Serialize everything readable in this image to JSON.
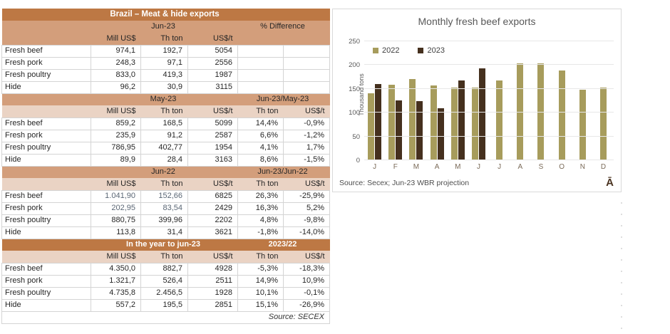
{
  "colors": {
    "header_dark": "#bd7844",
    "header_tan": "#d39e7b",
    "header_light": "#ead3c4",
    "bar_2022": "#a79c5c",
    "bar_2023": "#45301e"
  },
  "table": {
    "title": "Brazil – Meat & hide exports",
    "source": "Source: SECEX",
    "sections": [
      {
        "variant": "first",
        "period": "Jun-23",
        "diff_label": "% Difference",
        "col_headers": [
          "Mill US$",
          "Th ton",
          "US$/t",
          "",
          ""
        ],
        "rows": [
          {
            "label": "Fresh beef",
            "values": [
              "974,1",
              "192,7",
              "5054",
              "",
              ""
            ]
          },
          {
            "label": "Fresh pork",
            "values": [
              "248,3",
              "97,1",
              "2556",
              "",
              ""
            ]
          },
          {
            "label": "Fresh poultry",
            "values": [
              "833,0",
              "419,3",
              "1987",
              "",
              ""
            ]
          },
          {
            "label": "Hide",
            "values": [
              "96,2",
              "30,9",
              "3115",
              "",
              ""
            ]
          }
        ]
      },
      {
        "variant": "mid",
        "period": "May-23",
        "diff_label": "Jun-23/May-23",
        "col_headers": [
          "Mill US$",
          "Th ton",
          "US$/t",
          "Th ton",
          "US$/t"
        ],
        "rows": [
          {
            "label": "Fresh beef",
            "values": [
              "859,2",
              "168,5",
              "5099",
              "14,4%",
              "-0,9%"
            ]
          },
          {
            "label": "Fresh pork",
            "values": [
              "235,9",
              "91,2",
              "2587",
              "6,6%",
              "-1,2%"
            ]
          },
          {
            "label": "Fresh poultry",
            "values": [
              "786,95",
              "402,77",
              "1954",
              "4,1%",
              "1,7%"
            ]
          },
          {
            "label": "Hide",
            "values": [
              "89,9",
              "28,4",
              "3163",
              "8,6%",
              "-1,5%"
            ]
          }
        ]
      },
      {
        "variant": "mid",
        "period": "Jun-22",
        "diff_label": "Jun-23/Jun-22",
        "col_headers": [
          "Mill US$",
          "Th ton",
          "US$/t",
          "Th ton",
          "US$/t"
        ],
        "rows": [
          {
            "label": "Fresh beef",
            "values": [
              {
                "v": "1.041,90",
                "c": "muted"
              },
              {
                "v": "152,66",
                "c": "muted"
              },
              "6825",
              "26,3%",
              "-25,9%"
            ]
          },
          {
            "label": "Fresh pork",
            "values": [
              {
                "v": "202,95",
                "c": "muted"
              },
              {
                "v": "83,54",
                "c": "muted"
              },
              "2429",
              "16,3%",
              "5,2%"
            ]
          },
          {
            "label": "Fresh poultry",
            "values": [
              "880,75",
              "399,96",
              "2202",
              "4,8%",
              "-9,8%"
            ]
          },
          {
            "label": "Hide",
            "values": [
              "113,8",
              "31,4",
              "3621",
              "-1,8%",
              "-14,0%"
            ]
          }
        ]
      },
      {
        "variant": "dark",
        "period": "In the year to jun-23",
        "diff_label": "2023/22",
        "col_headers": [
          "Mill US$",
          "Th ton",
          "US$/t",
          "Th ton",
          "US$/t"
        ],
        "rows": [
          {
            "label": "Fresh beef",
            "values": [
              "4.350,0",
              "882,7",
              "4928",
              "-5,3%",
              "-18,3%"
            ]
          },
          {
            "label": "Fresh pork",
            "values": [
              "1.321,7",
              "526,4",
              "2511",
              "14,9%",
              "10,9%"
            ]
          },
          {
            "label": "Fresh poultry",
            "values": [
              "4.735,8",
              "2.456,5",
              "1928",
              "10,1%",
              "-0,1%"
            ]
          },
          {
            "label": "Hide",
            "values": [
              "557,2",
              "195,5",
              "2851",
              "15,1%",
              "-26,9%"
            ]
          }
        ]
      }
    ]
  },
  "chart_data": {
    "type": "bar",
    "title": "Monthly fresh beef exports",
    "ylabel": "Thousand tons",
    "categories": [
      "J",
      "F",
      "M",
      "A",
      "M",
      "J",
      "J",
      "A",
      "S",
      "O",
      "N",
      "D"
    ],
    "series": [
      {
        "name": "2022",
        "color": "#a79c5c",
        "values": [
          140,
          158,
          170,
          157,
          152,
          153,
          167,
          203,
          203,
          188,
          148,
          153
        ]
      },
      {
        "name": "2023",
        "color": "#45301e",
        "values": [
          160,
          126,
          125,
          110,
          168,
          193,
          null,
          null,
          null,
          null,
          null,
          null
        ]
      }
    ],
    "ylim": [
      0,
      250
    ],
    "yticks": [
      0,
      50,
      100,
      150,
      200,
      250
    ],
    "grid": true,
    "legend_position": "top-left",
    "source": "Source: Secex; Jun-23 WBR projection",
    "corner_mark": "Ā"
  }
}
